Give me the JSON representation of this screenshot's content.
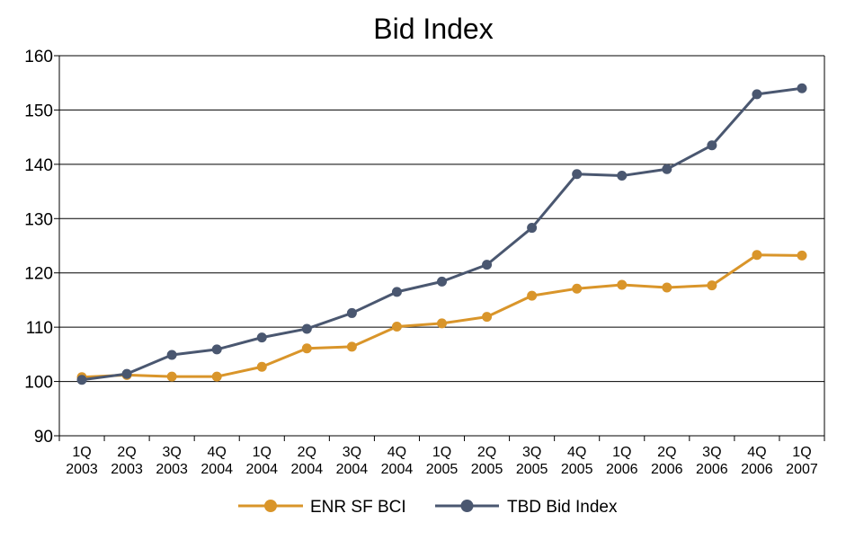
{
  "chart_data": {
    "type": "line",
    "title": "Bid Index",
    "xlabel": "",
    "ylabel": "",
    "ylim": [
      90,
      160
    ],
    "yticks": [
      90,
      100,
      110,
      120,
      130,
      140,
      150,
      160
    ],
    "grid": true,
    "legend_position": "bottom",
    "categories": [
      [
        "1Q",
        "2003"
      ],
      [
        "2Q",
        "2003"
      ],
      [
        "3Q",
        "2003"
      ],
      [
        "4Q",
        "2004"
      ],
      [
        "1Q",
        "2004"
      ],
      [
        "2Q",
        "2004"
      ],
      [
        "3Q",
        "2004"
      ],
      [
        "4Q",
        "2004"
      ],
      [
        "1Q",
        "2005"
      ],
      [
        "2Q",
        "2005"
      ],
      [
        "3Q",
        "2005"
      ],
      [
        "4Q",
        "2005"
      ],
      [
        "1Q",
        "2006"
      ],
      [
        "2Q",
        "2006"
      ],
      [
        "3Q",
        "2006"
      ],
      [
        "4Q",
        "2006"
      ],
      [
        "1Q",
        "2007"
      ]
    ],
    "series": [
      {
        "name": "ENR SF BCI",
        "color": "#D9952A",
        "values": [
          100.8,
          101.2,
          100.9,
          100.9,
          102.7,
          106.1,
          106.4,
          110.1,
          110.7,
          111.9,
          115.8,
          117.1,
          117.8,
          117.3,
          117.7,
          123.3,
          123.2
        ]
      },
      {
        "name": "TBD Bid Index",
        "color": "#4A5770",
        "values": [
          100.3,
          101.4,
          104.9,
          105.9,
          108.1,
          109.7,
          112.6,
          116.5,
          118.4,
          121.5,
          128.3,
          138.2,
          137.9,
          139.1,
          143.5,
          152.9,
          154.0
        ]
      }
    ]
  }
}
